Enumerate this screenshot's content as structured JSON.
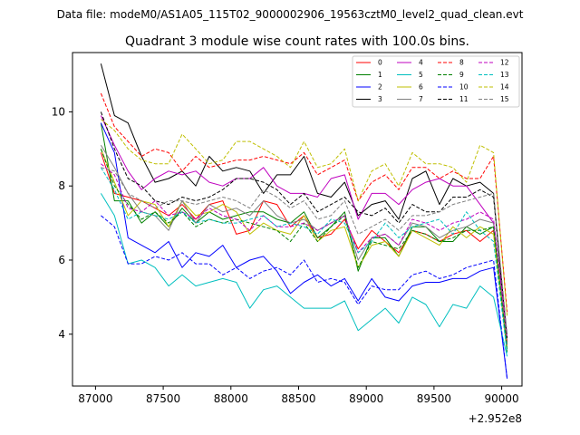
{
  "chart_data": {
    "type": "line",
    "suptitle": "Data file: modeM0/AS1A05_115T02_9000002906_19563cztM0_level2_quad_clean.evt",
    "title": "Quadrant 3 module wise count rates with 100.0s bins.",
    "xlabel": "",
    "ylabel": "",
    "x_offset_label": "+2.952e8",
    "xlim": [
      86830,
      90150
    ],
    "ylim": [
      2.6,
      11.6
    ],
    "xticks": [
      87000,
      87500,
      88000,
      88500,
      89000,
      89500,
      90000
    ],
    "xtick_labels": [
      "87000",
      "87500",
      "88000",
      "88500",
      "89000",
      "89500",
      "90000"
    ],
    "yticks": [
      4,
      6,
      8,
      10
    ],
    "ytick_labels": [
      "4",
      "6",
      "8",
      "10"
    ],
    "grid": false,
    "legend_position": "top-right",
    "x": [
      87040,
      87140,
      87240,
      87340,
      87440,
      87540,
      87640,
      87740,
      87840,
      87940,
      88040,
      88140,
      88240,
      88340,
      88440,
      88540,
      88640,
      88740,
      88840,
      88940,
      89040,
      89140,
      89240,
      89340,
      89440,
      89540,
      89640,
      89740,
      89840,
      89940,
      90040
    ],
    "series": [
      {
        "name": "0",
        "color": "#ff0000",
        "dash": "solid",
        "values": [
          8.9,
          7.8,
          7.7,
          7.6,
          7.4,
          7.2,
          7.5,
          7.1,
          7.5,
          7.6,
          6.7,
          6.8,
          7.6,
          7.5,
          6.9,
          7.2,
          6.6,
          6.7,
          7.1,
          6.3,
          6.8,
          6.5,
          6.2,
          6.8,
          6.7,
          6.5,
          6.7,
          6.8,
          6.5,
          6.8,
          3.8
        ]
      },
      {
        "name": "1",
        "color": "#008000",
        "dash": "solid",
        "values": [
          9.7,
          7.6,
          7.6,
          7.0,
          7.3,
          6.9,
          7.4,
          7.0,
          7.3,
          7.1,
          7.2,
          7.3,
          7.3,
          7.1,
          7.0,
          7.3,
          6.6,
          6.9,
          7.3,
          5.7,
          6.6,
          6.6,
          6.1,
          6.9,
          6.9,
          6.5,
          6.5,
          6.9,
          6.7,
          6.9,
          3.5
        ]
      },
      {
        "name": "2",
        "color": "#0000ff",
        "dash": "solid",
        "values": [
          9.7,
          8.9,
          6.6,
          6.4,
          6.2,
          6.5,
          5.8,
          6.2,
          6.1,
          6.4,
          5.8,
          6.0,
          6.1,
          5.7,
          5.1,
          5.4,
          5.6,
          5.3,
          5.5,
          4.9,
          5.5,
          5.0,
          4.9,
          5.3,
          5.4,
          5.4,
          5.5,
          5.5,
          5.7,
          5.8,
          2.8
        ]
      },
      {
        "name": "3",
        "color": "#000000",
        "dash": "solid",
        "values": [
          11.3,
          9.9,
          9.7,
          8.8,
          8.1,
          8.2,
          8.4,
          8.0,
          8.8,
          8.4,
          8.5,
          8.4,
          7.8,
          8.3,
          8.3,
          8.8,
          7.8,
          7.7,
          8.1,
          7.2,
          7.5,
          7.6,
          7.1,
          8.2,
          8.4,
          7.5,
          8.2,
          8.0,
          8.1,
          7.8,
          3.7
        ]
      },
      {
        "name": "4",
        "color": "#bf00bf",
        "dash": "solid",
        "values": [
          9.9,
          9.1,
          8.4,
          7.9,
          8.2,
          8.4,
          8.3,
          8.4,
          8.1,
          8.0,
          8.2,
          8.2,
          8.5,
          8.0,
          7.8,
          7.8,
          7.7,
          8.2,
          8.3,
          7.1,
          7.8,
          7.8,
          7.5,
          7.9,
          8.1,
          8.2,
          8.0,
          8.0,
          7.5,
          7.0,
          3.9
        ]
      },
      {
        "name": "5",
        "color": "#00bfbf",
        "dash": "solid",
        "values": [
          7.8,
          7.2,
          5.9,
          6.0,
          5.8,
          5.3,
          5.6,
          5.3,
          5.4,
          5.5,
          5.4,
          4.7,
          5.2,
          5.3,
          5.0,
          4.7,
          4.7,
          4.7,
          4.9,
          4.1,
          4.4,
          4.7,
          4.3,
          5.0,
          4.8,
          4.2,
          4.8,
          4.7,
          5.3,
          5.0,
          3.4
        ]
      },
      {
        "name": "6",
        "color": "#bfbf00",
        "dash": "solid",
        "values": [
          9.0,
          8.1,
          7.2,
          7.6,
          7.5,
          6.9,
          7.6,
          7.2,
          7.3,
          7.5,
          7.3,
          6.7,
          7.0,
          6.8,
          6.7,
          7.2,
          6.5,
          6.8,
          6.9,
          5.8,
          6.4,
          6.5,
          6.1,
          6.8,
          6.6,
          6.4,
          6.9,
          6.6,
          6.9,
          6.7,
          3.6
        ]
      },
      {
        "name": "7",
        "color": "#808080",
        "dash": "solid",
        "values": [
          9.1,
          8.5,
          7.8,
          7.3,
          7.2,
          6.8,
          7.6,
          7.0,
          7.5,
          7.3,
          7.4,
          7.2,
          7.6,
          7.2,
          7.0,
          7.1,
          6.8,
          7.0,
          7.2,
          6.0,
          6.6,
          6.7,
          6.4,
          7.0,
          6.9,
          6.6,
          6.8,
          6.9,
          7.1,
          7.0,
          3.7
        ]
      },
      {
        "name": "8",
        "color": "#ff0000",
        "dash": "dashed",
        "values": [
          10.5,
          9.6,
          9.2,
          8.8,
          9.0,
          8.9,
          8.4,
          8.8,
          8.5,
          8.6,
          8.7,
          8.7,
          8.8,
          8.7,
          8.6,
          8.9,
          8.3,
          8.5,
          8.7,
          7.6,
          8.1,
          8.3,
          7.9,
          8.5,
          8.5,
          8.2,
          8.4,
          8.2,
          8.2,
          8.8,
          4.6
        ]
      },
      {
        "name": "9",
        "color": "#008000",
        "dash": "dashed",
        "values": [
          9.0,
          8.0,
          7.5,
          7.1,
          7.3,
          7.0,
          7.3,
          6.9,
          7.1,
          7.0,
          7.1,
          7.0,
          6.9,
          6.8,
          6.5,
          7.0,
          6.5,
          6.9,
          7.2,
          5.8,
          6.5,
          6.4,
          6.3,
          6.8,
          6.7,
          6.5,
          6.6,
          6.8,
          6.8,
          6.9,
          3.6
        ]
      },
      {
        "name": "10",
        "color": "#0000ff",
        "dash": "dashed",
        "values": [
          7.2,
          6.9,
          5.9,
          5.9,
          6.1,
          6.0,
          6.2,
          5.9,
          5.9,
          5.6,
          5.8,
          5.5,
          5.7,
          5.8,
          5.6,
          6.0,
          5.4,
          5.5,
          5.4,
          4.8,
          5.3,
          5.2,
          5.2,
          5.6,
          5.7,
          5.5,
          5.6,
          5.8,
          5.9,
          6.0,
          2.8
        ]
      },
      {
        "name": "11",
        "color": "#000000",
        "dash": "dashed",
        "values": [
          10.0,
          9.0,
          8.2,
          8.0,
          7.6,
          7.5,
          7.7,
          7.6,
          7.7,
          7.9,
          8.2,
          8.2,
          8.1,
          7.9,
          7.5,
          7.8,
          7.3,
          7.5,
          7.7,
          7.3,
          7.2,
          7.4,
          7.0,
          7.5,
          7.3,
          7.3,
          7.7,
          7.7,
          7.9,
          7.7,
          3.9
        ]
      },
      {
        "name": "12",
        "color": "#bf00bf",
        "dash": "dashed",
        "values": [
          8.6,
          8.3,
          7.4,
          7.3,
          7.6,
          7.2,
          7.3,
          7.1,
          7.4,
          7.2,
          7.1,
          6.8,
          7.2,
          6.9,
          6.9,
          7.0,
          6.8,
          7.0,
          7.2,
          6.2,
          6.6,
          6.7,
          6.4,
          7.1,
          7.0,
          6.8,
          7.0,
          7.1,
          7.3,
          7.1,
          4.0
        ]
      },
      {
        "name": "13",
        "color": "#00bfbf",
        "dash": "dashed",
        "values": [
          8.5,
          7.9,
          7.1,
          7.3,
          7.2,
          7.1,
          7.3,
          7.0,
          7.1,
          7.0,
          7.0,
          7.1,
          7.2,
          6.9,
          7.0,
          6.9,
          6.7,
          7.1,
          7.0,
          6.2,
          6.5,
          7.0,
          6.6,
          6.9,
          7.0,
          7.1,
          6.7,
          7.3,
          6.8,
          6.5,
          3.5
        ]
      },
      {
        "name": "14",
        "color": "#bfbf00",
        "dash": "dashed",
        "values": [
          9.8,
          9.5,
          9.0,
          8.7,
          8.6,
          8.6,
          9.4,
          9.0,
          8.6,
          8.7,
          9.2,
          9.2,
          9.0,
          8.8,
          8.5,
          9.2,
          8.5,
          8.6,
          9.0,
          7.6,
          8.4,
          8.6,
          8.0,
          8.9,
          8.6,
          8.6,
          8.5,
          8.1,
          9.1,
          8.9,
          4.5
        ]
      },
      {
        "name": "15",
        "color": "#808080",
        "dash": "dashed",
        "values": [
          8.5,
          8.4,
          7.8,
          7.6,
          7.4,
          7.6,
          7.6,
          7.5,
          7.6,
          7.7,
          7.6,
          7.4,
          7.9,
          7.7,
          7.4,
          7.6,
          7.1,
          7.2,
          7.6,
          6.7,
          6.9,
          7.1,
          6.8,
          7.2,
          7.2,
          7.3,
          7.5,
          7.6,
          7.7,
          7.8,
          4.0
        ]
      }
    ]
  }
}
